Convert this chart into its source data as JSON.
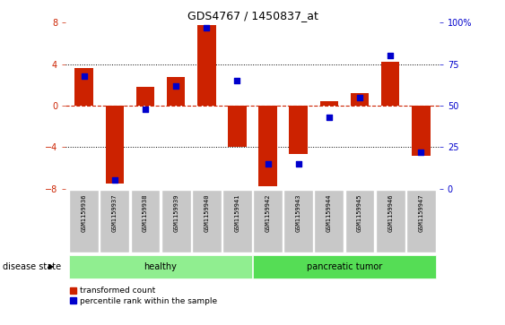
{
  "title": "GDS4767 / 1450837_at",
  "samples": [
    "GSM1159936",
    "GSM1159937",
    "GSM1159938",
    "GSM1159939",
    "GSM1159940",
    "GSM1159941",
    "GSM1159942",
    "GSM1159943",
    "GSM1159944",
    "GSM1159945",
    "GSM1159946",
    "GSM1159947"
  ],
  "bar_values": [
    3.6,
    -7.5,
    1.8,
    2.8,
    7.8,
    -4.0,
    -7.8,
    -4.7,
    0.4,
    1.2,
    4.2,
    -4.8
  ],
  "dot_pct": [
    68,
    5,
    48,
    62,
    97,
    65,
    15,
    15,
    43,
    55,
    80,
    22
  ],
  "healthy_count": 6,
  "tumor_count": 6,
  "bar_color": "#CC2200",
  "dot_color": "#0000CC",
  "ylim": [
    -8,
    8
  ],
  "yticks": [
    -8,
    -4,
    0,
    4,
    8
  ],
  "y2ticks": [
    0,
    25,
    50,
    75,
    100
  ],
  "dotted_lines": [
    -4,
    4
  ],
  "healthy_color": "#90EE90",
  "tumor_color": "#55DD55",
  "label_bg_color": "#C8C8C8",
  "bar_width": 0.6,
  "legend_red_label": "transformed count",
  "legend_blue_label": "percentile rank within the sample",
  "disease_state_label": "disease state",
  "healthy_label": "healthy",
  "tumor_label": "pancreatic tumor"
}
